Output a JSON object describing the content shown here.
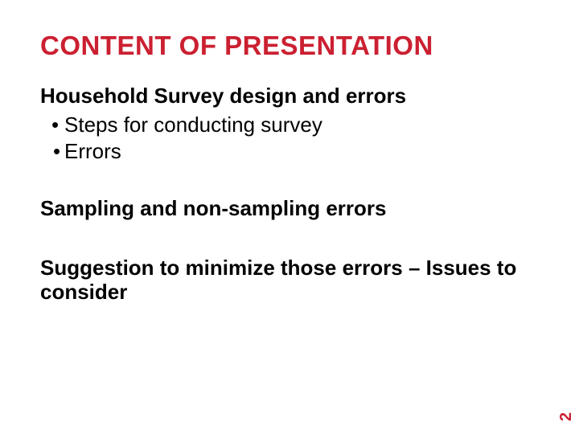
{
  "slide": {
    "title": "CONTENT OF PRESENTATION",
    "title_color": "#cb2031",
    "sections": [
      {
        "heading": "Household Survey design and errors",
        "bullets": [
          "Steps for conducting survey",
          "Errors"
        ]
      },
      {
        "heading": "Sampling and non-sampling errors",
        "bullets": []
      },
      {
        "heading": "Suggestion to minimize those errors – Issues to consider",
        "bullets": []
      }
    ],
    "page_number": "2",
    "page_number_color": "#cb2031",
    "background_color": "#ffffff",
    "text_color": "#000000",
    "title_fontsize": 33,
    "heading_fontsize": 26,
    "bullet_fontsize": 26
  }
}
